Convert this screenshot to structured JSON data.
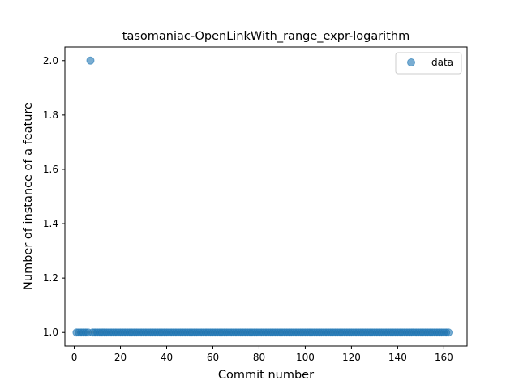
{
  "chart_data": {
    "type": "scatter",
    "title": "tasomaniac-OpenLinkWith_range_expr-logarithm",
    "xlabel": "Commit number",
    "ylabel": "Number of instance of a feature",
    "xlim": [
      -4.05,
      170.05
    ],
    "ylim": [
      0.95,
      2.05
    ],
    "xticks": [
      0,
      20,
      40,
      60,
      80,
      100,
      120,
      140,
      160
    ],
    "yticks": [
      1.0,
      1.2,
      1.4,
      1.6,
      1.8,
      2.0
    ],
    "ytick_labels": [
      "1.0",
      "1.2",
      "1.4",
      "1.6",
      "1.8",
      "2.0"
    ],
    "grid": false,
    "legend_position": "top-right",
    "series": [
      {
        "name": "data",
        "marker": "circle",
        "color": "#1f77b4",
        "alpha": 0.6,
        "x_range": [
          1,
          162
        ],
        "baseline_value": 1,
        "outliers": [
          {
            "x": 7,
            "y": 2
          }
        ]
      }
    ],
    "fit_line": {
      "color": "#ff7f0e",
      "alpha": 0.6,
      "x_range": [
        1,
        162
      ],
      "y": 1
    }
  }
}
